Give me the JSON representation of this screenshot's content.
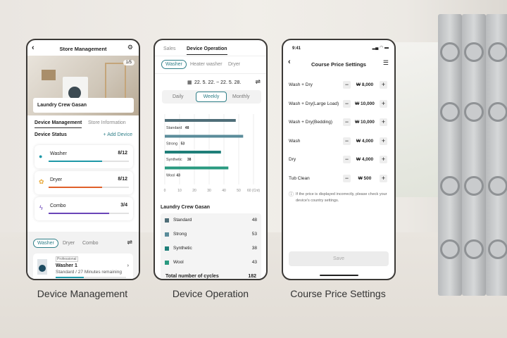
{
  "captions": [
    "Device Management",
    "Device Operation",
    "Course Price Settings"
  ],
  "phone1": {
    "title": "Store Management",
    "pager": "1/5",
    "store_name": "Laundry Crew Gasan",
    "tabs": [
      "Device Management",
      "Store Information"
    ],
    "section": "Device Status",
    "add_device": "+ Add Device",
    "devices": [
      {
        "name": "Washer",
        "count": "8/12",
        "fraction": 0.67,
        "color": "#1e98a8",
        "icon": "water-drop-icon"
      },
      {
        "name": "Dryer",
        "count": "8/12",
        "fraction": 0.67,
        "color": "#e0602a",
        "icon": "dryer-icon"
      },
      {
        "name": "Combo",
        "count": "3/4",
        "fraction": 0.75,
        "color": "#6a45b8",
        "icon": "lightning-icon"
      }
    ],
    "filter_chips": [
      "Washer",
      "Dryer",
      "Combo"
    ],
    "item": {
      "badge": "Professional",
      "name": "Washer 1",
      "status": "Standard / 27 Minutes remaining",
      "progress": 0.4
    }
  },
  "phone2": {
    "tabs": [
      "Sales",
      "Device Operation"
    ],
    "chips": [
      "Washer",
      "Heater washer",
      "Dryer"
    ],
    "date_range": "22. 5. 22. ~ 22. 5. 28.",
    "periods": [
      "Daily",
      "Weekly",
      "Monthly"
    ],
    "list_title": "Laundry Crew Gasan",
    "total_label": "Total number of cycles",
    "total_value": "182"
  },
  "chart_data": {
    "type": "bar",
    "orientation": "horizontal",
    "categories": [
      "Standard",
      "Strong",
      "Synthetic",
      "Wool"
    ],
    "values": [
      48,
      53,
      38,
      43
    ],
    "colors": [
      "#4f6e78",
      "#5a8c9a",
      "#1f7f79",
      "#2a9a80"
    ],
    "xlim": [
      0,
      60
    ],
    "xticks": [
      "0",
      "10",
      "20",
      "30",
      "40",
      "50",
      "60"
    ],
    "xunit": "(Cnt)",
    "grid": true
  },
  "phone3": {
    "time": "9:41",
    "title": "Course Price Settings",
    "courses": [
      {
        "name": "Wash + Dry",
        "price": "₩ 8,000"
      },
      {
        "name": "Wash + Dry(Large Load)",
        "price": "₩ 10,000"
      },
      {
        "name": "Wash + Dry(Bedding)",
        "price": "₩ 10,000"
      },
      {
        "name": "Wash",
        "price": "₩ 4,000"
      },
      {
        "name": "Dry",
        "price": "₩ 4,000"
      },
      {
        "name": "Tub Clean",
        "price": "₩ 500"
      }
    ],
    "minus": "−",
    "plus": "+",
    "notice": "If the price is displayed incorrectly, please check your device's country settings.",
    "save": "Save"
  }
}
